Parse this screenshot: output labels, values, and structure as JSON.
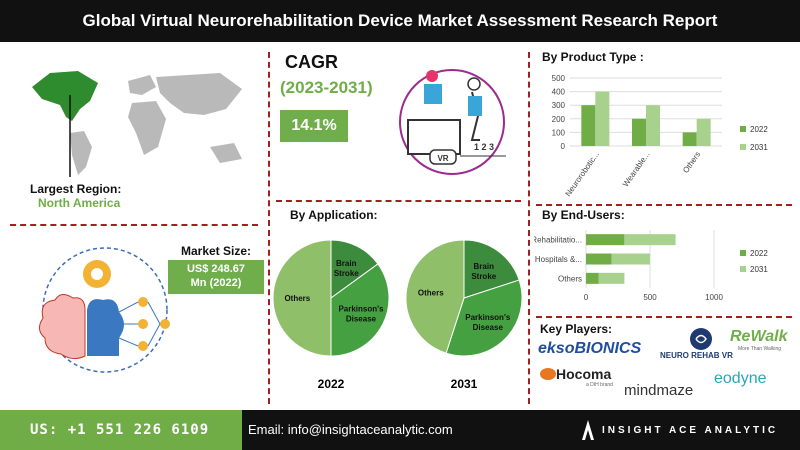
{
  "header": {
    "title": "Global Virtual Neurorehabilitation Device Market Assessment Research Report"
  },
  "region": {
    "label": "Largest Region:",
    "value": "North America"
  },
  "cagr": {
    "label": "CAGR",
    "period": "(2023-2031)",
    "value": "14.1%"
  },
  "market_size": {
    "label": "Market Size:",
    "value_line1": "US$ 248.67",
    "value_line2": "Mn (2022)"
  },
  "sections": {
    "product": "By Product Type :",
    "application": "By Application:",
    "end_users": "By End-Users:",
    "key_players": "Key Players:"
  },
  "vr_icon": {
    "vr": "VR",
    "steps": "1 2 3"
  },
  "key_players": [
    "eksoBIONICS",
    "NEURO REHAB VR",
    "ReWalk",
    "More Than Walking",
    "Hocoma",
    "a DIH brand",
    "mindmaze",
    "eodyne"
  ],
  "footer": {
    "phone": "US: +1 551 226 6109",
    "email": "Email: info@insightaceanalytic.com",
    "brand": "INSIGHT ACE ANALYTIC"
  },
  "colors": {
    "dark_green": "#70ad47",
    "light_green": "#a9d18e",
    "accent_red": "#a32020",
    "pie_mid": "#44a040",
    "pie_dark": "#3d8b3d",
    "pie_light": "#8fbf68"
  },
  "chart_data": [
    {
      "type": "bar",
      "title": "By Product Type :",
      "categories": [
        "Neurorobotic...",
        "Wearable...",
        "Others"
      ],
      "series": [
        {
          "name": "2022",
          "values": [
            300,
            200,
            100
          ]
        },
        {
          "name": "2031",
          "values": [
            400,
            300,
            200
          ]
        }
      ],
      "ylim": [
        0,
        500
      ],
      "yticks": [
        0,
        100,
        200,
        300,
        400,
        500
      ],
      "legend": "right"
    },
    {
      "type": "bar",
      "orientation": "horizontal",
      "stacked": true,
      "title": "By End-Users:",
      "categories": [
        "Rehabilitatio...",
        "Hospitals &...",
        "Others"
      ],
      "series": [
        {
          "name": "2022",
          "values": [
            300,
            200,
            100
          ]
        },
        {
          "name": "2031",
          "values": [
            400,
            300,
            200
          ]
        }
      ],
      "xlim": [
        0,
        1000
      ],
      "xticks": [
        0,
        500,
        1000
      ],
      "legend": "right"
    },
    {
      "type": "pie",
      "title": "By Application:",
      "label": "2022",
      "slices": [
        {
          "name": "Brain Stroke",
          "value": 15
        },
        {
          "name": "Parkinson's Disease",
          "value": 35
        },
        {
          "name": "Others",
          "value": 50
        }
      ]
    },
    {
      "type": "pie",
      "title": "By Application:",
      "label": "2031",
      "slices": [
        {
          "name": "Brain Stroke",
          "value": 20
        },
        {
          "name": "Parkinson's Disease",
          "value": 35
        },
        {
          "name": "Others",
          "value": 45
        }
      ]
    }
  ]
}
